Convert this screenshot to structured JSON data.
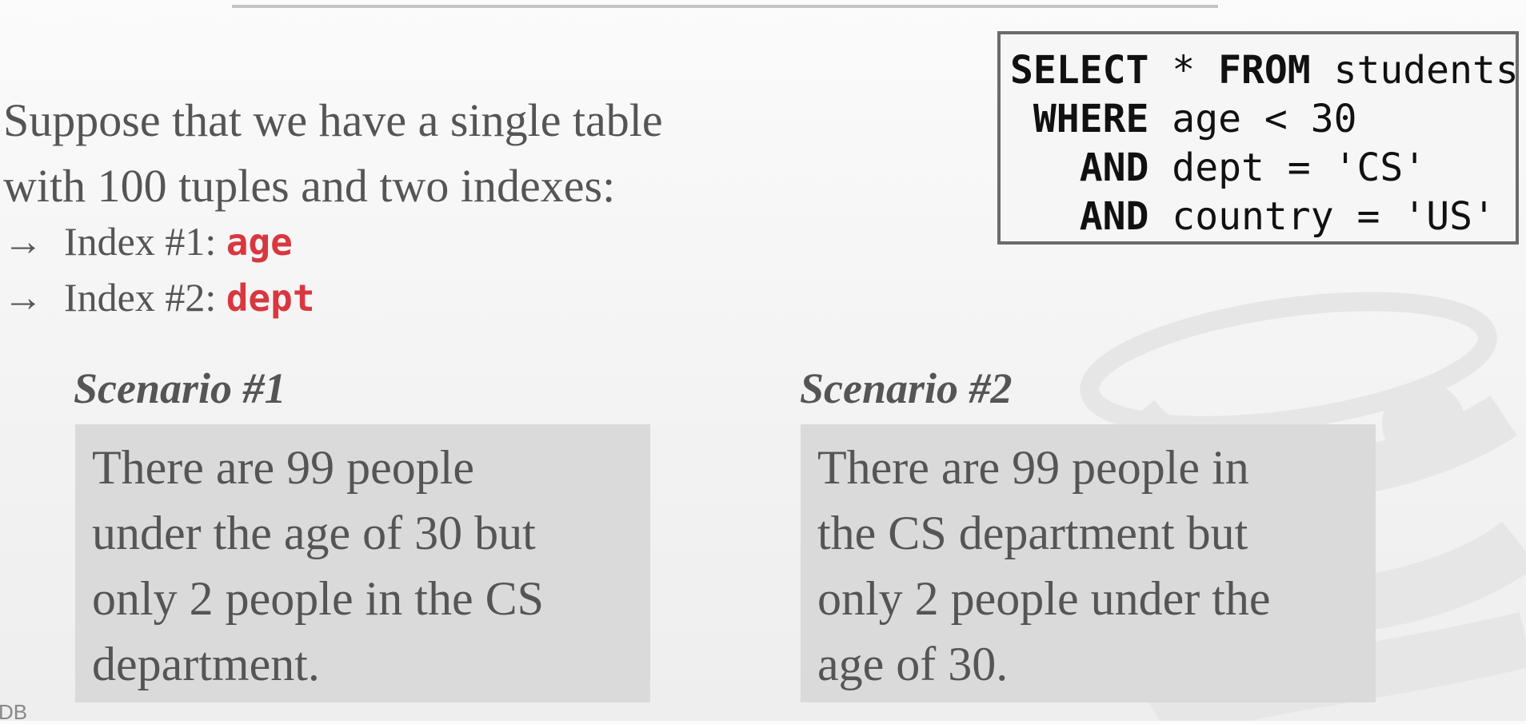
{
  "intro": {
    "lines": [
      "Suppose that we have a single table",
      "with 100 tuples and two indexes:"
    ],
    "indexes": [
      {
        "arrow": "→",
        "label": "Index #1: ",
        "column": "age"
      },
      {
        "arrow": "→",
        "label": "Index #2: ",
        "column": "dept"
      }
    ]
  },
  "query": {
    "lines": [
      {
        "keyword": "SELECT",
        "text": " * ",
        "keyword2": "FROM",
        "text2": " students",
        "indent": ""
      },
      {
        "keyword": "WHERE",
        "text": " age < 30",
        "indent": " "
      },
      {
        "keyword": "AND",
        "text": " dept = 'CS'",
        "indent": "   "
      },
      {
        "keyword": "AND",
        "text": " country = 'US'",
        "indent": "   "
      }
    ]
  },
  "scenarios": [
    {
      "title": "Scenario #1",
      "lines": [
        "There are 99 people",
        "under the age of 30 but",
        "only 2 people in the CS",
        "department."
      ]
    },
    {
      "title": "Scenario #2",
      "lines": [
        "There are 99 people in",
        "the CS department but",
        "only 2 people under the",
        "age of 30."
      ]
    }
  ],
  "footer": {
    "corner_text": "DB"
  },
  "colors": {
    "accent": "#d9373f",
    "text": "#555555",
    "box_fill": "#dadada",
    "watermark": "#e6e6e6"
  }
}
